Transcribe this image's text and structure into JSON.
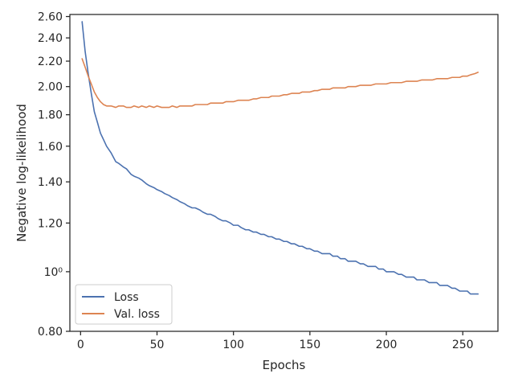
{
  "chart_data": {
    "type": "line",
    "xlabel": "Epochs",
    "ylabel": "Negative log-likelihood",
    "x_scale": "linear",
    "y_scale": "log",
    "xlim": [
      -7,
      273
    ],
    "ylim": [
      0.8,
      2.62
    ],
    "xticks": [
      0,
      50,
      100,
      150,
      200,
      250
    ],
    "xtick_labels": [
      "0",
      "50",
      "100",
      "150",
      "200",
      "250"
    ],
    "yticks": [
      0.8,
      1.0,
      1.2,
      1.4,
      1.6,
      1.8,
      2.0,
      2.2,
      2.4,
      2.6
    ],
    "ytick_labels": [
      "0.80",
      "10⁰",
      "1.20",
      "1.40",
      "1.60",
      "1.80",
      "2.00",
      "2.20",
      "2.40",
      "2.60"
    ],
    "grid": false,
    "legend_position": "lower-left",
    "series": [
      {
        "name": "Loss",
        "color": "#4c72b0",
        "x": [
          1,
          3,
          5,
          7,
          9,
          11,
          13,
          15,
          17,
          20,
          23,
          25,
          28,
          30,
          33,
          35,
          38,
          40,
          43,
          45,
          48,
          50,
          53,
          55,
          58,
          60,
          63,
          65,
          68,
          70,
          73,
          75,
          78,
          80,
          83,
          85,
          88,
          90,
          93,
          95,
          98,
          100,
          103,
          105,
          108,
          110,
          113,
          115,
          118,
          120,
          123,
          125,
          128,
          130,
          133,
          135,
          138,
          140,
          143,
          145,
          148,
          150,
          153,
          155,
          158,
          160,
          163,
          165,
          168,
          170,
          173,
          175,
          178,
          180,
          183,
          185,
          188,
          190,
          193,
          195,
          198,
          200,
          203,
          205,
          208,
          210,
          213,
          215,
          218,
          220,
          223,
          225,
          228,
          230,
          233,
          235,
          238,
          240,
          243,
          245,
          248,
          250,
          253,
          255,
          258,
          260
        ],
        "y": [
          2.55,
          2.28,
          2.1,
          1.95,
          1.82,
          1.75,
          1.68,
          1.64,
          1.6,
          1.56,
          1.51,
          1.5,
          1.48,
          1.47,
          1.44,
          1.43,
          1.42,
          1.41,
          1.39,
          1.38,
          1.37,
          1.36,
          1.35,
          1.34,
          1.33,
          1.32,
          1.31,
          1.3,
          1.29,
          1.28,
          1.27,
          1.27,
          1.26,
          1.25,
          1.24,
          1.24,
          1.23,
          1.22,
          1.21,
          1.21,
          1.2,
          1.19,
          1.19,
          1.18,
          1.17,
          1.17,
          1.16,
          1.16,
          1.15,
          1.15,
          1.14,
          1.14,
          1.13,
          1.13,
          1.12,
          1.12,
          1.11,
          1.11,
          1.1,
          1.1,
          1.09,
          1.09,
          1.08,
          1.08,
          1.07,
          1.07,
          1.07,
          1.06,
          1.06,
          1.05,
          1.05,
          1.04,
          1.04,
          1.04,
          1.03,
          1.03,
          1.02,
          1.02,
          1.02,
          1.01,
          1.01,
          1.0,
          1.0,
          1.0,
          0.99,
          0.99,
          0.98,
          0.98,
          0.98,
          0.97,
          0.97,
          0.97,
          0.96,
          0.96,
          0.96,
          0.95,
          0.95,
          0.95,
          0.94,
          0.94,
          0.93,
          0.93,
          0.93,
          0.92,
          0.92,
          0.92
        ]
      },
      {
        "name": "Val. loss",
        "color": "#dd8452",
        "x": [
          1,
          3,
          5,
          7,
          9,
          11,
          13,
          15,
          17,
          20,
          23,
          25,
          28,
          30,
          33,
          35,
          38,
          40,
          43,
          45,
          48,
          50,
          53,
          55,
          58,
          60,
          63,
          65,
          68,
          70,
          73,
          75,
          78,
          80,
          83,
          85,
          88,
          90,
          93,
          95,
          98,
          100,
          103,
          105,
          108,
          110,
          113,
          115,
          118,
          120,
          123,
          125,
          128,
          130,
          133,
          135,
          138,
          140,
          143,
          145,
          148,
          150,
          153,
          155,
          158,
          160,
          163,
          165,
          168,
          170,
          173,
          175,
          178,
          180,
          183,
          185,
          188,
          190,
          193,
          195,
          198,
          200,
          203,
          205,
          208,
          210,
          213,
          215,
          218,
          220,
          223,
          225,
          228,
          230,
          233,
          235,
          238,
          240,
          243,
          245,
          248,
          250,
          253,
          255,
          258,
          260
        ],
        "y": [
          2.22,
          2.15,
          2.08,
          2.02,
          1.96,
          1.92,
          1.89,
          1.87,
          1.86,
          1.86,
          1.85,
          1.86,
          1.86,
          1.85,
          1.85,
          1.86,
          1.85,
          1.86,
          1.85,
          1.86,
          1.85,
          1.86,
          1.85,
          1.85,
          1.85,
          1.86,
          1.85,
          1.86,
          1.86,
          1.86,
          1.86,
          1.87,
          1.87,
          1.87,
          1.87,
          1.88,
          1.88,
          1.88,
          1.88,
          1.89,
          1.89,
          1.89,
          1.9,
          1.9,
          1.9,
          1.9,
          1.91,
          1.91,
          1.92,
          1.92,
          1.92,
          1.93,
          1.93,
          1.93,
          1.94,
          1.94,
          1.95,
          1.95,
          1.95,
          1.96,
          1.96,
          1.96,
          1.97,
          1.97,
          1.98,
          1.98,
          1.98,
          1.99,
          1.99,
          1.99,
          1.99,
          2.0,
          2.0,
          2.0,
          2.01,
          2.01,
          2.01,
          2.01,
          2.02,
          2.02,
          2.02,
          2.02,
          2.03,
          2.03,
          2.03,
          2.03,
          2.04,
          2.04,
          2.04,
          2.04,
          2.05,
          2.05,
          2.05,
          2.05,
          2.06,
          2.06,
          2.06,
          2.06,
          2.07,
          2.07,
          2.07,
          2.08,
          2.08,
          2.09,
          2.1,
          2.11
        ]
      }
    ]
  }
}
